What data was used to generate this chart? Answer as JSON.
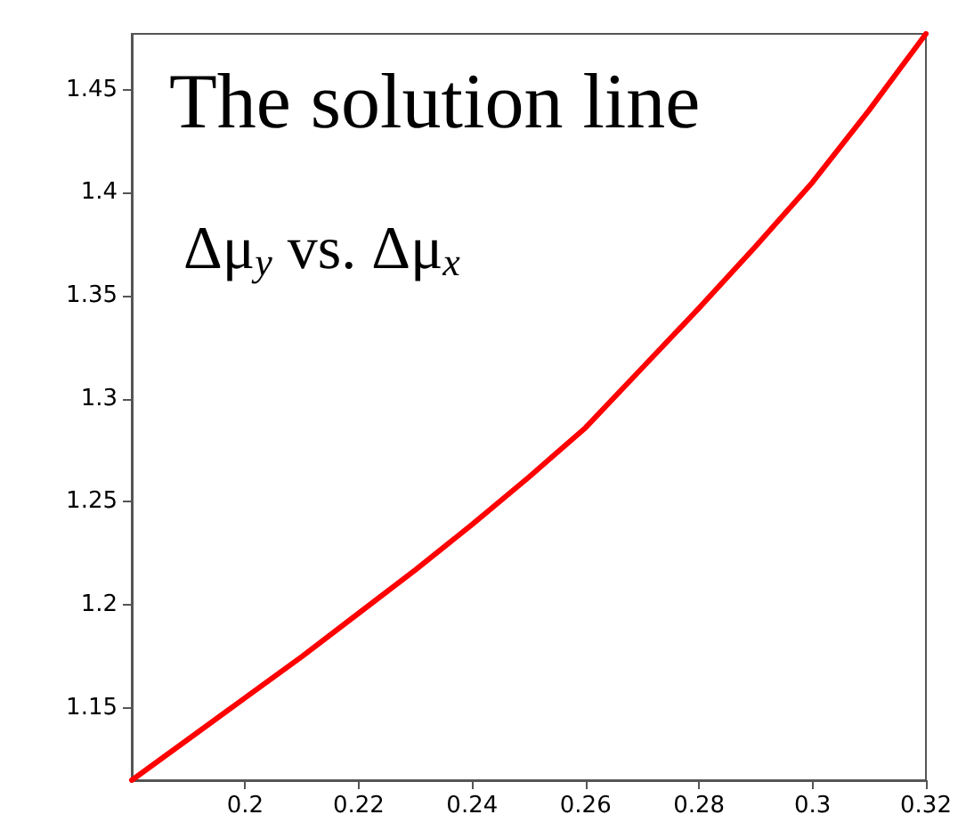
{
  "chart_data": {
    "type": "line",
    "title": "The solution line",
    "annotations": [
      "Δμ$_{y}$ vs. Δμ$_{x}$"
    ],
    "x": [
      0.18,
      0.19,
      0.2,
      0.21,
      0.22,
      0.23,
      0.24,
      0.25,
      0.26,
      0.27,
      0.28,
      0.29,
      0.3,
      0.31,
      0.32
    ],
    "series": [
      {
        "color": "#ff0000",
        "values": [
          1.115,
          1.135,
          1.155,
          1.175,
          1.196,
          1.217,
          1.239,
          1.262,
          1.286,
          1.315,
          1.344,
          1.374,
          1.405,
          1.44,
          1.477
        ]
      }
    ],
    "xlim": [
      0.18,
      0.32
    ],
    "xticks": [
      0.2,
      0.22,
      0.24,
      0.26,
      0.28,
      0.3,
      0.32
    ],
    "ylim": [
      1.115,
      1.477
    ],
    "yticks": [
      1.15,
      1.2,
      1.25,
      1.3,
      1.35,
      1.4,
      1.45
    ],
    "marker": "none",
    "line_style": "solid"
  }
}
